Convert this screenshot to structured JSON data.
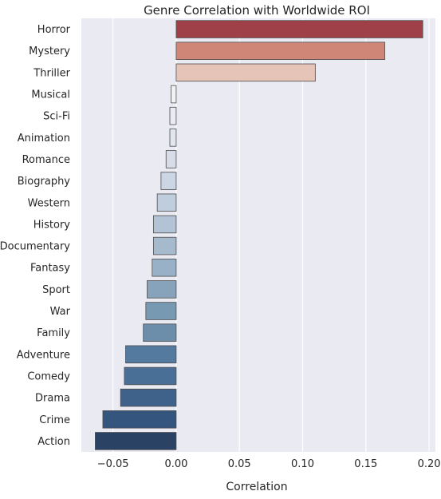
{
  "chart_data": {
    "type": "bar",
    "orientation": "horizontal",
    "title": "Genre Correlation with Worldwide ROI",
    "xlabel": "Correlation",
    "ylabel": "",
    "xlim": [
      -0.075,
      0.205
    ],
    "xticks": [
      -0.05,
      0.0,
      0.05,
      0.1,
      0.15,
      0.2
    ],
    "xtick_labels": [
      "−0.05",
      "0.00",
      "0.05",
      "0.10",
      "0.15",
      "0.20"
    ],
    "grid": true,
    "background": "#eaeaf2",
    "categories": [
      "Horror",
      "Mystery",
      "Thriller",
      "Musical",
      "Sci-Fi",
      "Animation",
      "Romance",
      "Biography",
      "Western",
      "History",
      "Documentary",
      "Fantasy",
      "Sport",
      "War",
      "Family",
      "Adventure",
      "Comedy",
      "Drama",
      "Crime",
      "Action"
    ],
    "values": [
      0.195,
      0.165,
      0.11,
      -0.004,
      -0.005,
      -0.005,
      -0.008,
      -0.012,
      -0.015,
      -0.018,
      -0.018,
      -0.019,
      -0.023,
      -0.024,
      -0.026,
      -0.04,
      -0.041,
      -0.044,
      -0.058,
      -0.064
    ],
    "colors": [
      "#9f4048",
      "#cf8677",
      "#e6c4b8",
      "#f2f2f5",
      "#eaecf1",
      "#e2e6ee",
      "#d6dde8",
      "#cbd5e3",
      "#bfcddd",
      "#b2c3d6",
      "#a6bace",
      "#99b1c6",
      "#86a3bb",
      "#7899b2",
      "#6c8eaa",
      "#547aa0",
      "#4a6f97",
      "#3f628b",
      "#33557e",
      "#2a4365"
    ]
  }
}
